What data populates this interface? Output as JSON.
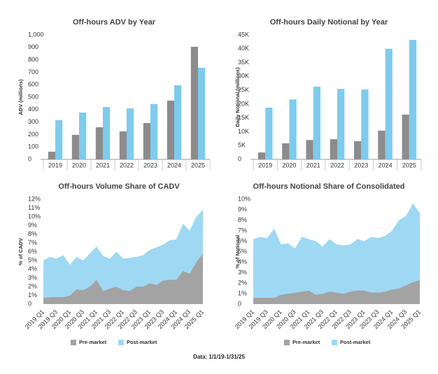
{
  "chart_data": [
    {
      "type": "bar",
      "title": "Off-hours ADV by Year",
      "y_label": "ADV (millions)",
      "categories": [
        "2019",
        "2020",
        "2021",
        "2022",
        "2023",
        "2024",
        "2025"
      ],
      "series": [
        {
          "color": "#8c8c8c",
          "values": [
            62,
            197,
            258,
            225,
            292,
            472,
            905
          ]
        },
        {
          "color": "#7ecbee",
          "values": [
            315,
            376,
            421,
            410,
            444,
            596,
            736
          ]
        }
      ],
      "ylim": [
        0,
        1000
      ],
      "yticks": [
        0,
        100,
        200,
        300,
        400,
        500,
        600,
        700,
        800,
        900,
        {
          "value": 1000,
          "label": "1,000"
        }
      ],
      "grid": false
    },
    {
      "type": "bar",
      "title": "Off-hours Daily Notional by Year",
      "y_label": "Daily Notional (millions)",
      "categories": [
        "2019",
        "2020",
        "2021",
        "2022",
        "2023",
        "2024",
        "2025"
      ],
      "series": [
        {
          "color": "#8c8c8c",
          "values": [
            2500,
            5800,
            7000,
            7300,
            6600,
            10400,
            16200
          ]
        },
        {
          "color": "#7ecbee",
          "values": [
            18700,
            21700,
            26300,
            25500,
            25300,
            40000,
            43200
          ]
        }
      ],
      "ylim": [
        0,
        45000
      ],
      "yticks": [
        0,
        {
          "value": 5000,
          "label": "5K"
        },
        {
          "value": 10000,
          "label": "10K"
        },
        {
          "value": 15000,
          "label": "15K"
        },
        {
          "value": 20000,
          "label": "20K"
        },
        {
          "value": 25000,
          "label": "25K"
        },
        {
          "value": 30000,
          "label": "30K"
        },
        {
          "value": 35000,
          "label": "35K"
        },
        {
          "value": 40000,
          "label": "40K"
        },
        {
          "value": 45000,
          "label": "45K"
        }
      ],
      "grid": false
    },
    {
      "type": "area",
      "title": "Off-hours Volume Share of CADV",
      "y_label": "% of CADV",
      "categories": [
        "2019 Q1",
        null,
        "2019 Q3",
        null,
        "2020 Q1",
        null,
        "2020 Q3",
        null,
        "2021 Q1",
        null,
        "2021 Q3",
        null,
        "2022 Q1",
        null,
        "2022 Q3",
        null,
        "2023 Q1",
        null,
        "2023 Q3",
        null,
        "2024 Q1",
        null,
        "2024 Q3",
        null,
        "2025 Q1"
      ],
      "series": [
        {
          "name": "Pre-market",
          "color": "#a3a3a3",
          "values": [
            0.7,
            0.8,
            0.8,
            0.8,
            1.0,
            1.7,
            1.6,
            2.0,
            2.8,
            1.5,
            1.8,
            2.0,
            1.6,
            1.5,
            2.0,
            2.0,
            2.4,
            2.2,
            2.7,
            2.8,
            2.8,
            3.8,
            3.5,
            4.8,
            5.8
          ]
        },
        {
          "name": "Post-market",
          "color": "#9fd8f3",
          "values": [
            4.3,
            4.6,
            4.4,
            4.8,
            3.5,
            3.7,
            3.4,
            3.8,
            3.8,
            4.0,
            3.4,
            4.0,
            3.6,
            3.8,
            3.4,
            3.6,
            3.8,
            4.3,
            4.1,
            4.5,
            4.6,
            5.4,
            4.9,
            5.2,
            5.0
          ]
        }
      ],
      "ylim": [
        0,
        12
      ],
      "yticks": [
        0,
        {
          "value": 1,
          "label": "1%"
        },
        {
          "value": 2,
          "label": "2%"
        },
        {
          "value": 3,
          "label": "3%"
        },
        {
          "value": 4,
          "label": "4%"
        },
        {
          "value": 5,
          "label": "5%"
        },
        {
          "value": 6,
          "label": "6%"
        },
        {
          "value": 7,
          "label": "7%"
        },
        {
          "value": 8,
          "label": "8%"
        },
        {
          "value": 9,
          "label": "9%"
        },
        {
          "value": 10,
          "label": "10%"
        },
        {
          "value": 11,
          "label": "11%"
        },
        {
          "value": 12,
          "label": "12%"
        }
      ],
      "grid": false,
      "legend": "bottom"
    },
    {
      "type": "area",
      "title": "Off-hours Notional Share of Consolidated",
      "y_label": "% of Notional",
      "categories": [
        "2019 Q1",
        null,
        "2019 Q3",
        null,
        "2020 Q1",
        null,
        "2020 Q3",
        null,
        "2021 Q1",
        null,
        "2021 Q3",
        null,
        "2022 Q1",
        null,
        "2022 Q3",
        null,
        "2023 Q1",
        null,
        "2023 Q3",
        null,
        "2024 Q1",
        null,
        "2024 Q3",
        null,
        "2025 Q1"
      ],
      "series": [
        {
          "name": "Pre-market",
          "color": "#a3a3a3",
          "values": [
            0.6,
            0.6,
            0.6,
            0.6,
            0.9,
            1.0,
            1.1,
            1.2,
            1.3,
            0.9,
            1.0,
            1.2,
            1.1,
            1.0,
            1.2,
            1.3,
            1.3,
            1.1,
            1.1,
            1.2,
            1.4,
            1.5,
            1.8,
            2.1,
            2.3
          ]
        },
        {
          "name": "Post-market",
          "color": "#9fd8f3",
          "values": [
            5.6,
            5.8,
            5.7,
            6.6,
            4.8,
            4.8,
            4.2,
            5.2,
            4.9,
            5.1,
            4.5,
            5.0,
            4.6,
            4.6,
            4.5,
            4.9,
            4.7,
            5.3,
            5.2,
            5.3,
            5.6,
            6.5,
            6.6,
            7.5,
            6.4
          ]
        }
      ],
      "ylim": [
        0,
        10
      ],
      "yticks": [
        0,
        {
          "value": 1,
          "label": "1%"
        },
        {
          "value": 2,
          "label": "2%"
        },
        {
          "value": 3,
          "label": "3%"
        },
        {
          "value": 4,
          "label": "4%"
        },
        {
          "value": 5,
          "label": "5%"
        },
        {
          "value": 6,
          "label": "6%"
        },
        {
          "value": 7,
          "label": "7%"
        },
        {
          "value": 8,
          "label": "8%"
        },
        {
          "value": 9,
          "label": "9%"
        },
        {
          "value": 10,
          "label": "10%"
        }
      ],
      "grid": false,
      "legend": "bottom"
    }
  ],
  "footer": "Data: 1/1/19-1/31/25"
}
